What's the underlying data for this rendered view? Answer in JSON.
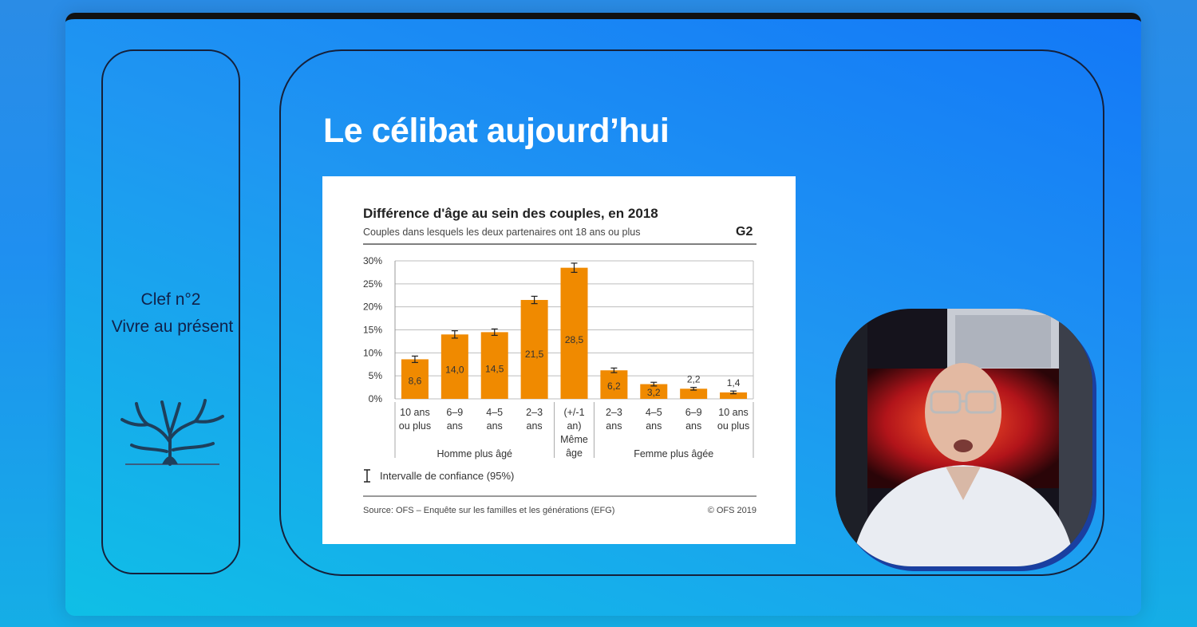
{
  "sidebar": {
    "key_title": "Clef n°2",
    "key_subtitle": "Vivre au présent"
  },
  "slide": {
    "title": "Le célibat aujourd’hui"
  },
  "chart": {
    "title": "Différence d'âge au sein des couples, en 2018",
    "subtitle": "Couples dans lesquels les deux partenaires ont 18 ans ou plus",
    "code": "G2",
    "legend": "Intervalle de confiance (95%)",
    "source": "Source: OFS – Enquête sur les familles et les générations (EFG)",
    "copyright": "© OFS 2019",
    "group_left": "Homme plus âgé",
    "group_right": "Femme plus âgée"
  },
  "chart_data": {
    "type": "bar",
    "title": "Différence d'âge au sein des couples, en 2018",
    "subtitle": "Couples dans lesquels les deux partenaires ont 18 ans ou plus",
    "categories": [
      [
        "10 ans",
        "ou plus"
      ],
      [
        "6–9",
        "ans"
      ],
      [
        "4–5",
        "ans"
      ],
      [
        "2–3",
        "ans"
      ],
      [
        "(+/-1",
        "an)",
        "Même",
        "âge"
      ],
      [
        "2–3",
        "ans"
      ],
      [
        "4–5",
        "ans"
      ],
      [
        "6–9",
        "ans"
      ],
      [
        "10 ans",
        "ou plus"
      ]
    ],
    "groups": [
      {
        "label": "Homme plus âgé",
        "start": 0,
        "end": 3
      },
      {
        "label": "Même âge",
        "start": 4,
        "end": 4
      },
      {
        "label": "Femme plus âgée",
        "start": 5,
        "end": 8
      }
    ],
    "values": [
      8.6,
      14.0,
      14.5,
      21.5,
      28.5,
      6.2,
      3.2,
      2.2,
      1.4
    ],
    "value_labels": [
      "8,6",
      "14,0",
      "14,5",
      "21,5",
      "28,5",
      "6,2",
      "3,2",
      "2,2",
      "1,4"
    ],
    "ci_low": [
      7.9,
      13.2,
      13.8,
      20.7,
      27.5,
      5.7,
      2.8,
      1.9,
      1.1
    ],
    "ci_high": [
      9.3,
      14.8,
      15.2,
      22.3,
      29.5,
      6.7,
      3.6,
      2.5,
      1.7
    ],
    "yticks": [
      "0%",
      "5%",
      "10%",
      "15%",
      "20%",
      "25%",
      "30%"
    ],
    "ylim": [
      0,
      30
    ],
    "grid": true,
    "bar_color": "#f08a00"
  },
  "colors": {
    "accent": "#f08a00",
    "panel_border": "#15203a"
  }
}
